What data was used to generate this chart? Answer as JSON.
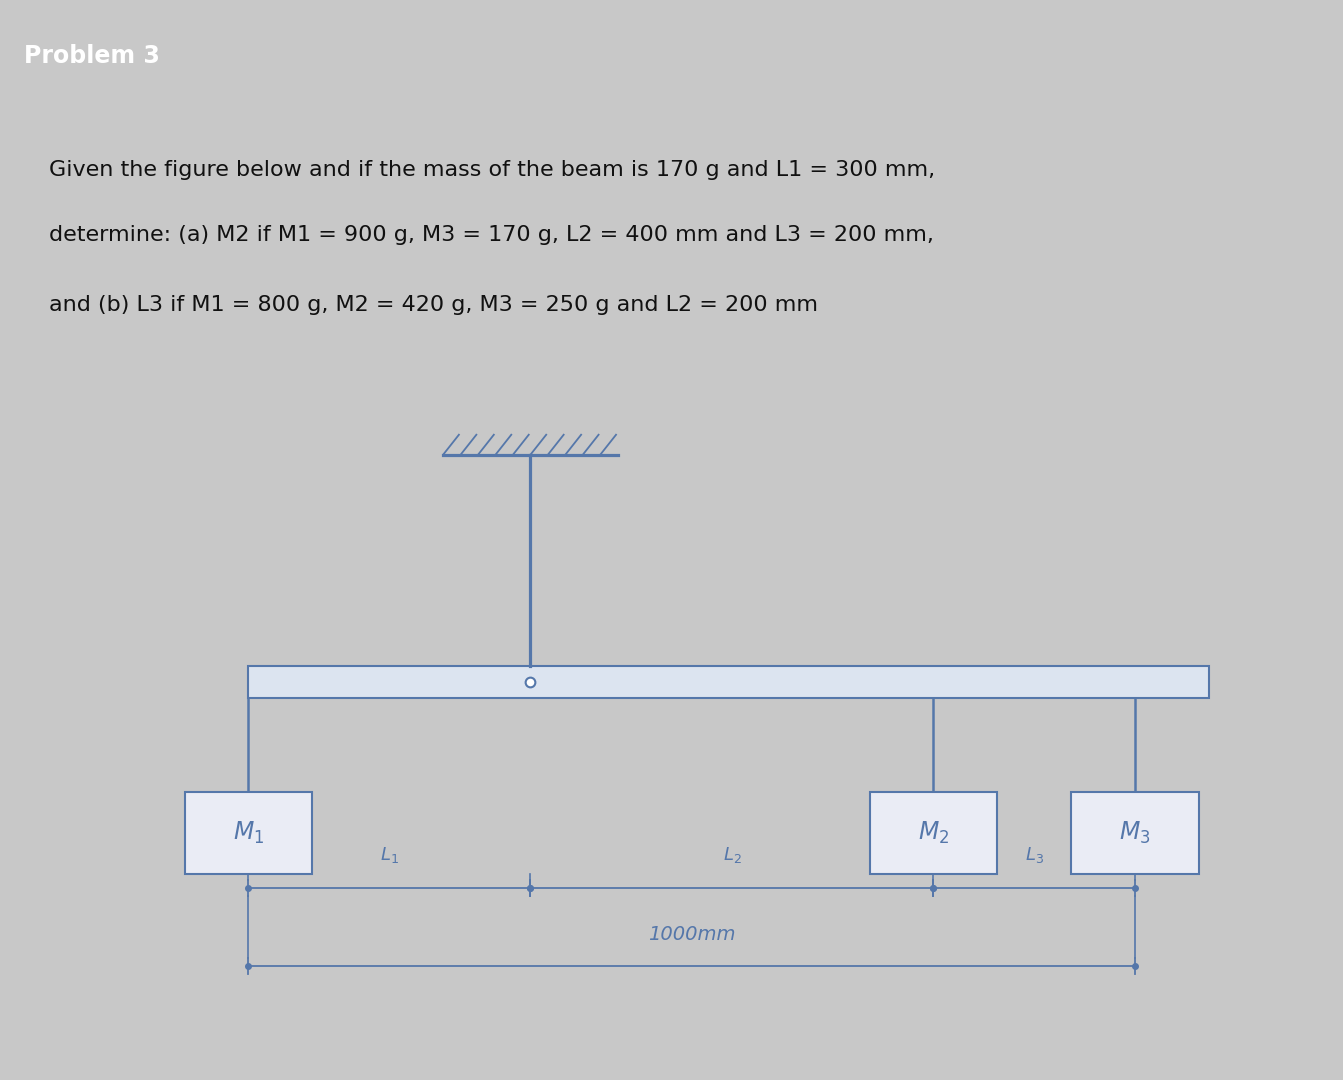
{
  "bg_outer": "#c8c8c8",
  "bg_inner": "#d8d8d8",
  "header_bg": "#111111",
  "header_text": "Problem 3",
  "header_text_color": "#ffffff",
  "header_fontsize": 17,
  "teal_color": "#4aaa9a",
  "text_box_bg": "#f0f0f0",
  "text_box_border": "#bbbbbb",
  "line1": "Given the figure below and if the mass of the beam is 170 g and L1 = 300 mm,",
  "line2": "determine: (a) M2 if M1 = 900 g, M3 = 170 g, L2 = 400 mm and L3 = 200 mm,",
  "line3": "and (b) L3 if M1 = 800 g, M2 = 420 g, M3 = 250 g and L2 = 200 mm",
  "text_color": "#111111",
  "text_fontsize": 16,
  "dc": "#5577aa",
  "beam_lw": 1.8,
  "fig_w": 13.43,
  "fig_h": 10.8,
  "dpi": 100
}
